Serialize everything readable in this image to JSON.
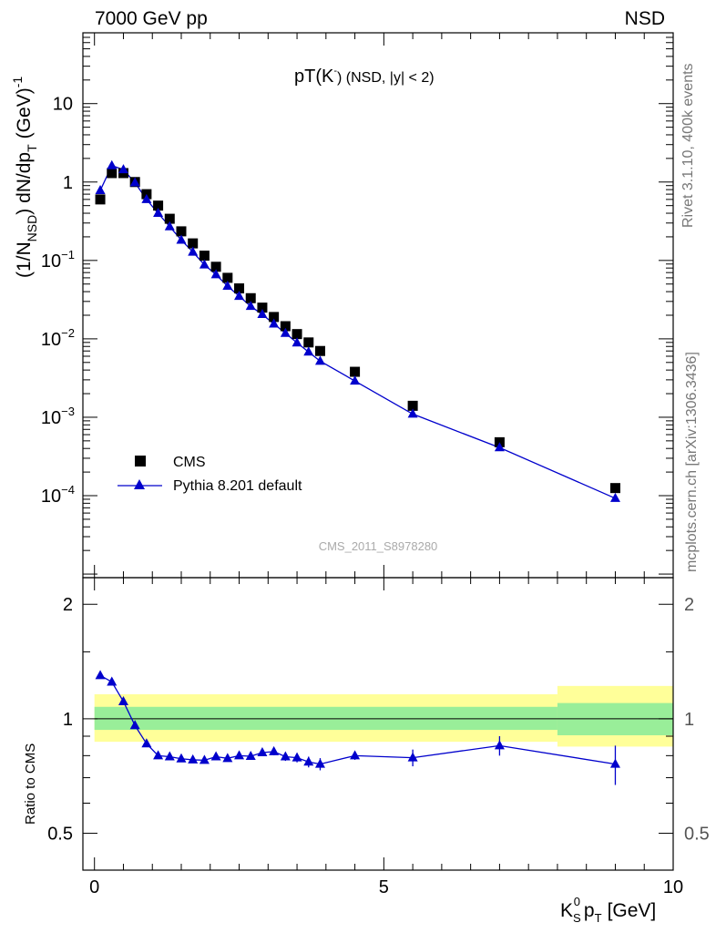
{
  "header": {
    "left": "7000 GeV pp",
    "right": "NSD"
  },
  "side_labels": {
    "rivet": "Rivet 3.1.10,  400k events",
    "mcplots": "mcplots.cern.ch [arXiv:1306.3436]"
  },
  "chart_data": {
    "type": "line",
    "title": "pT(K) (NSD, |y| < 2)",
    "title_main": "pT(K",
    "title_sup": "-",
    "title_rest": ") (NSD, |y| < 2)",
    "watermark": "CMS_2011_S8978280",
    "xlabel": "K_S^0 p_T [GeV]",
    "xlabel_parts": {
      "k": "K",
      "sub": "S",
      "sup": "0",
      "p": "p",
      "psub": "T",
      "rest": "[GeV]"
    },
    "ylabel": "(1/N_NSD) dN/dp_T (GeV)^-1",
    "ylabel_parts": {
      "a": "(1/N",
      "sub1": "NSD",
      "b": ") dN/dp",
      "sub2": "T",
      "c": "(GeV)",
      "sup": "-1"
    },
    "ratio_ylabel": "Ratio to CMS",
    "xlim": [
      -0.2,
      10
    ],
    "ylim": [
      9e-06,
      80
    ],
    "yscale": "log",
    "ratio_ylim": [
      0.4,
      2.35
    ],
    "ratio_yscale": "log",
    "x_ticks": [
      "0",
      "5",
      "10"
    ],
    "y_ticks": [
      {
        "v": 10,
        "m": "10",
        "e": ""
      },
      {
        "v": 1,
        "m": "1",
        "e": ""
      },
      {
        "v": 0.1,
        "m": "10",
        "e": "−1"
      },
      {
        "v": 0.01,
        "m": "10",
        "e": "−2"
      },
      {
        "v": 0.001,
        "m": "10",
        "e": "−3"
      },
      {
        "v": 0.0001,
        "m": "10",
        "e": "−4"
      }
    ],
    "ratio_ticks": [
      "2",
      "1",
      "0.5"
    ],
    "legend_position": "lower-left",
    "series": [
      {
        "name": "CMS",
        "marker": "square",
        "color": "#000000",
        "x": [
          0.1,
          0.3,
          0.5,
          0.7,
          0.9,
          1.1,
          1.3,
          1.5,
          1.7,
          1.9,
          2.1,
          2.3,
          2.5,
          2.7,
          2.9,
          3.1,
          3.3,
          3.5,
          3.7,
          3.9,
          4.5,
          5.5,
          7.0,
          9.0
        ],
        "y": [
          0.6,
          1.3,
          1.3,
          1.0,
          0.7,
          0.5,
          0.34,
          0.235,
          0.165,
          0.115,
          0.083,
          0.06,
          0.044,
          0.033,
          0.025,
          0.019,
          0.0145,
          0.0115,
          0.009,
          0.007,
          0.0038,
          0.0014,
          0.00048,
          0.000125
        ]
      },
      {
        "name": "Pythia 8.201 default",
        "marker": "triangle",
        "color": "#0000cc",
        "x": [
          0.1,
          0.3,
          0.5,
          0.7,
          0.9,
          1.1,
          1.3,
          1.5,
          1.7,
          1.9,
          2.1,
          2.3,
          2.5,
          2.7,
          2.9,
          3.1,
          3.3,
          3.5,
          3.7,
          3.9,
          4.5,
          5.5,
          7.0,
          9.0
        ],
        "y": [
          0.78,
          1.62,
          1.44,
          0.98,
          0.6,
          0.4,
          0.27,
          0.182,
          0.128,
          0.088,
          0.066,
          0.047,
          0.035,
          0.026,
          0.0205,
          0.0155,
          0.0118,
          0.0089,
          0.0068,
          0.0052,
          0.0029,
          0.0011,
          0.00041,
          9.25e-05
        ]
      }
    ],
    "ratio": {
      "x": [
        0.1,
        0.3,
        0.5,
        0.7,
        0.9,
        1.1,
        1.3,
        1.5,
        1.7,
        1.9,
        2.1,
        2.3,
        2.5,
        2.7,
        2.9,
        3.1,
        3.3,
        3.5,
        3.7,
        3.9,
        4.5,
        5.5,
        7.0,
        9.0
      ],
      "y": [
        1.3,
        1.25,
        1.11,
        0.96,
        0.86,
        0.8,
        0.795,
        0.785,
        0.78,
        0.778,
        0.795,
        0.787,
        0.8,
        0.797,
        0.815,
        0.82,
        0.795,
        0.79,
        0.77,
        0.76,
        0.8,
        0.79,
        0.85,
        0.76
      ],
      "err": [
        0.0,
        0.0,
        0.0,
        0.0,
        0.0,
        0.008,
        0.008,
        0.008,
        0.008,
        0.008,
        0.01,
        0.01,
        0.012,
        0.012,
        0.015,
        0.018,
        0.02,
        0.022,
        0.025,
        0.028,
        0.02,
        0.04,
        0.05,
        0.09
      ],
      "band_inner": [
        {
          "x0": 0,
          "x1": 8,
          "lo": 0.935,
          "hi": 1.075
        },
        {
          "x0": 8,
          "x1": 10,
          "lo": 0.905,
          "hi": 1.1
        }
      ],
      "band_outer": [
        {
          "x0": 0,
          "x1": 8,
          "lo": 0.87,
          "hi": 1.16
        },
        {
          "x0": 8,
          "x1": 10,
          "lo": 0.845,
          "hi": 1.22
        }
      ],
      "band_inner_color": "#99ee99",
      "band_outer_color": "#ffff99"
    }
  }
}
